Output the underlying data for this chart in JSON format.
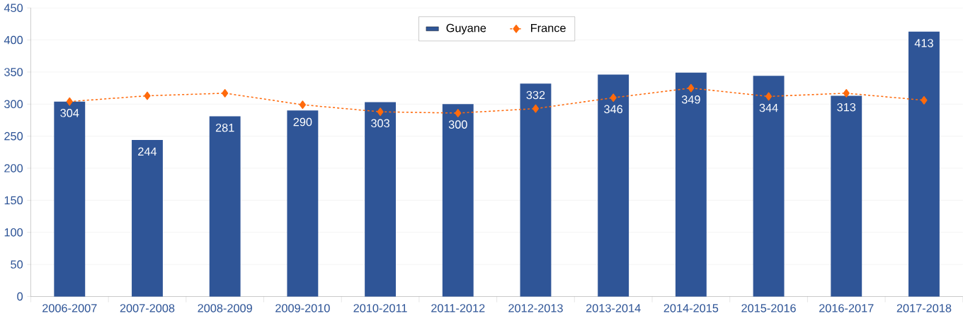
{
  "chart_data": {
    "type": "bar",
    "categories": [
      "2006-2007",
      "2007-2008",
      "2008-2009",
      "2009-2010",
      "2010-2011",
      "2011-2012",
      "2012-2013",
      "2013-2014",
      "2014-2015",
      "2015-2016",
      "2016-2017",
      "2017-2018"
    ],
    "series": [
      {
        "name": "Guyane",
        "color": "#2f5597",
        "values": [
          304,
          244,
          281,
          290,
          303,
          300,
          332,
          346,
          349,
          344,
          313,
          413
        ],
        "value_labels": [
          "304",
          "244",
          "281",
          "290",
          "303",
          "300",
          "332",
          "346",
          "349",
          "344",
          "313",
          "413"
        ]
      },
      {
        "name": "France",
        "type": "line",
        "color": "#ff6a0c",
        "marker": "diamond",
        "line_style": "dashed",
        "values": [
          304,
          313,
          317,
          299,
          288,
          286,
          293,
          310,
          325,
          312,
          317,
          306
        ]
      }
    ],
    "ylim": [
      0,
      450
    ],
    "yticks": [
      0,
      50,
      100,
      150,
      200,
      250,
      300,
      350,
      400,
      450
    ],
    "grid": "y",
    "legend": "top"
  }
}
